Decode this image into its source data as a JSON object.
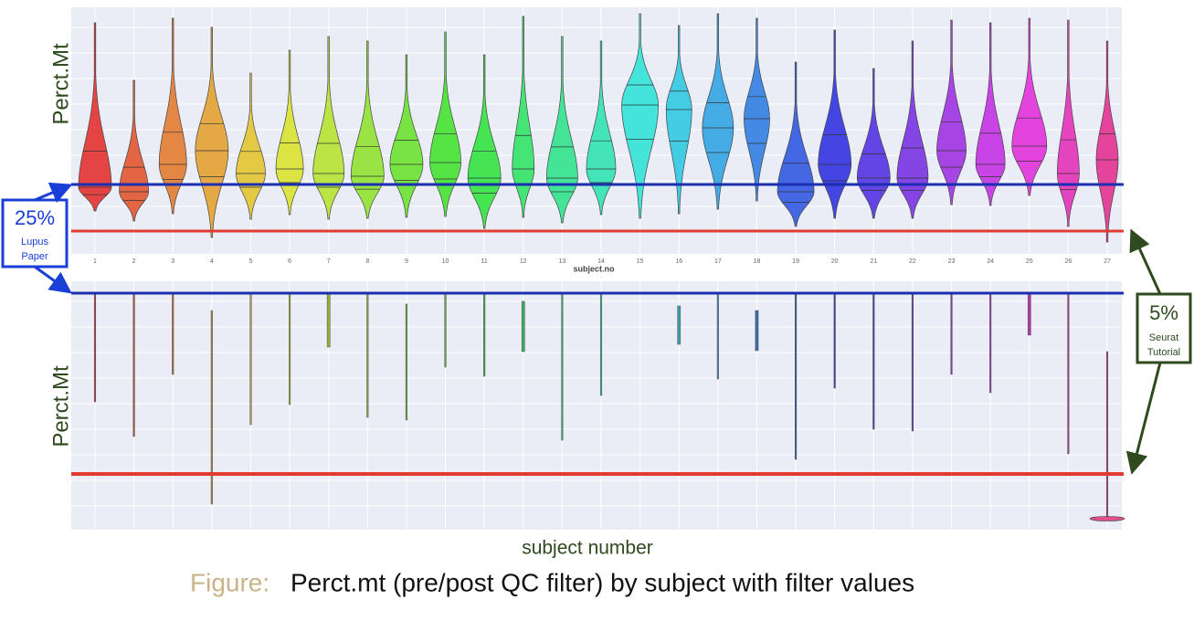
{
  "top_panel": {
    "y_label": "Perct.Mt",
    "x_label": "subject.no",
    "x_ticks": [
      "1",
      "2",
      "3",
      "4",
      "5",
      "6",
      "7",
      "8",
      "9",
      "10",
      "11",
      "12",
      "13",
      "14",
      "15",
      "16",
      "17",
      "18",
      "19",
      "20",
      "21",
      "22",
      "23",
      "24",
      "25",
      "26",
      "27"
    ]
  },
  "bottom_panel": {
    "y_label": "Perct.Mt",
    "x_label": "subject number"
  },
  "callouts": [
    {
      "value": "25%",
      "lines": [
        "Lupus",
        "Paper"
      ]
    },
    {
      "value": "5%",
      "lines": [
        "Seurat",
        "Tutorial"
      ]
    }
  ],
  "caption": {
    "prefix": "Figure:",
    "text": "Perct.mt (pre/post QC filter) by subject with filter values"
  }
}
